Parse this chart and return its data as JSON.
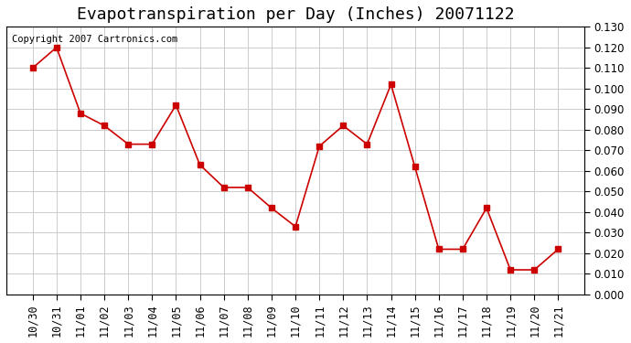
{
  "title": "Evapotranspiration per Day (Inches) 20071122",
  "copyright_text": "Copyright 2007 Cartronics.com",
  "x_labels": [
    "10/30",
    "10/31",
    "11/01",
    "11/02",
    "11/03",
    "11/04",
    "11/05",
    "11/06",
    "11/07",
    "11/08",
    "11/09",
    "11/10",
    "11/11",
    "11/12",
    "11/13",
    "11/14",
    "11/15",
    "11/16",
    "11/17",
    "11/18",
    "11/19",
    "11/20",
    "11/21"
  ],
  "y_values": [
    0.11,
    0.12,
    0.088,
    0.082,
    0.073,
    0.073,
    0.092,
    0.063,
    0.052,
    0.052,
    0.042,
    0.033,
    0.072,
    0.082,
    0.073,
    0.102,
    0.062,
    0.022,
    0.022,
    0.042,
    0.012,
    0.012,
    0.022
  ],
  "line_color": "#cc0000",
  "marker": "s",
  "marker_size": 4,
  "ylim": [
    0.0,
    0.13
  ],
  "ytick_interval": 0.01,
  "background_color": "#ffffff",
  "grid_color": "#cccccc",
  "title_fontsize": 13,
  "tick_fontsize": 8.5,
  "copyright_fontsize": 7.5
}
